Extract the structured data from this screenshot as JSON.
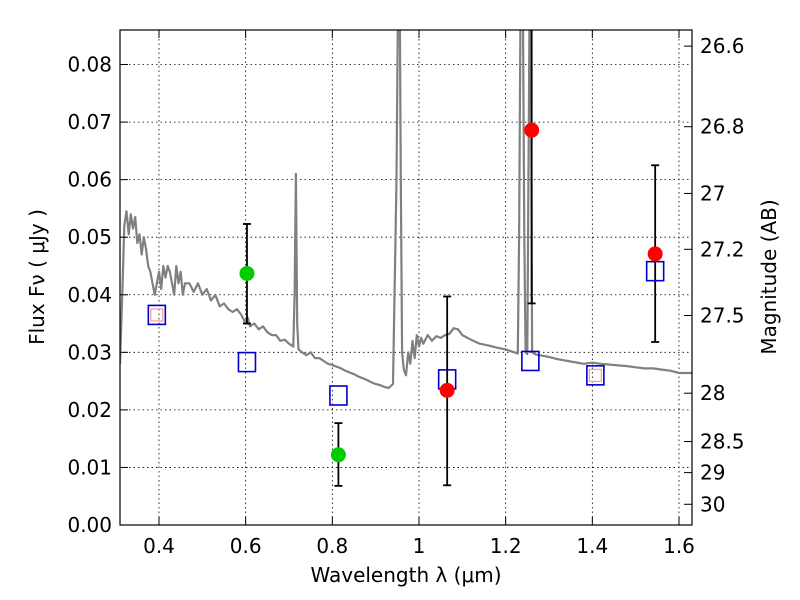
{
  "chart_data": {
    "type": "scatter",
    "xlabel": "Wavelength  λ (μm)",
    "ylabel": "Flux  Fν  ( μJy )",
    "ylabel_right": "Magnitude (AB)",
    "xlim": [
      0.31,
      1.63
    ],
    "ylim": [
      0.0,
      0.086
    ],
    "grid": true,
    "x_ticks": [
      0.4,
      0.6,
      0.8,
      1.0,
      1.2,
      1.4,
      1.6
    ],
    "x_tick_labels": [
      "0.4",
      "0.6",
      "0.8",
      "1",
      "1.2",
      "1.4",
      "1.6"
    ],
    "y_ticks": [
      0.0,
      0.01,
      0.02,
      0.03,
      0.04,
      0.05,
      0.06,
      0.07,
      0.08
    ],
    "y_tick_labels": [
      "0.00",
      "0.01",
      "0.02",
      "0.03",
      "0.04",
      "0.05",
      "0.06",
      "0.07",
      "0.08"
    ],
    "right_ticks": [
      {
        "label": "26.6",
        "flux": 0.0832
      },
      {
        "label": "26.8",
        "flux": 0.0692
      },
      {
        "label": "27",
        "flux": 0.0576
      },
      {
        "label": "27.2",
        "flux": 0.0479
      },
      {
        "label": "27.5",
        "flux": 0.0364
      },
      {
        "label": "28",
        "flux": 0.0229
      },
      {
        "label": "28.5",
        "flux": 0.0145
      },
      {
        "label": "29",
        "flux": 0.0091
      },
      {
        "label": "30",
        "flux": 0.0036
      }
    ],
    "colors": {
      "model_line": "#808080",
      "green_points": "#00cc00",
      "red_points": "#ff0000",
      "model_boxes": "#0000cc",
      "errorbar": "#000000",
      "grid": "#808080"
    },
    "model_spectrum": [
      [
        0.31,
        0.028
      ],
      [
        0.316,
        0.042
      ],
      [
        0.32,
        0.052
      ],
      [
        0.325,
        0.0545
      ],
      [
        0.33,
        0.0505
      ],
      [
        0.335,
        0.054
      ],
      [
        0.34,
        0.0515
      ],
      [
        0.345,
        0.0535
      ],
      [
        0.35,
        0.049
      ],
      [
        0.355,
        0.0505
      ],
      [
        0.36,
        0.047
      ],
      [
        0.365,
        0.05
      ],
      [
        0.37,
        0.048
      ],
      [
        0.375,
        0.045
      ],
      [
        0.38,
        0.044
      ],
      [
        0.385,
        0.042
      ],
      [
        0.39,
        0.04
      ],
      [
        0.4,
        0.044
      ],
      [
        0.405,
        0.041
      ],
      [
        0.41,
        0.045
      ],
      [
        0.415,
        0.043
      ],
      [
        0.42,
        0.045
      ],
      [
        0.425,
        0.044
      ],
      [
        0.43,
        0.042
      ],
      [
        0.435,
        0.04
      ],
      [
        0.44,
        0.045
      ],
      [
        0.445,
        0.042
      ],
      [
        0.45,
        0.044
      ],
      [
        0.455,
        0.04
      ],
      [
        0.46,
        0.042
      ],
      [
        0.47,
        0.042
      ],
      [
        0.48,
        0.0405
      ],
      [
        0.49,
        0.042
      ],
      [
        0.5,
        0.04
      ],
      [
        0.51,
        0.041
      ],
      [
        0.52,
        0.039
      ],
      [
        0.53,
        0.04
      ],
      [
        0.54,
        0.038
      ],
      [
        0.55,
        0.0385
      ],
      [
        0.56,
        0.0375
      ],
      [
        0.57,
        0.037
      ],
      [
        0.58,
        0.0375
      ],
      [
        0.59,
        0.0365
      ],
      [
        0.6,
        0.035
      ],
      [
        0.605,
        0.036
      ],
      [
        0.61,
        0.0345
      ],
      [
        0.62,
        0.035
      ],
      [
        0.63,
        0.034
      ],
      [
        0.64,
        0.0345
      ],
      [
        0.65,
        0.0335
      ],
      [
        0.66,
        0.033
      ],
      [
        0.67,
        0.033
      ],
      [
        0.68,
        0.032
      ],
      [
        0.69,
        0.0322
      ],
      [
        0.7,
        0.0315
      ],
      [
        0.71,
        0.031
      ],
      [
        0.713,
        0.04
      ],
      [
        0.716,
        0.061
      ],
      [
        0.719,
        0.035
      ],
      [
        0.722,
        0.0305
      ],
      [
        0.73,
        0.03
      ],
      [
        0.74,
        0.0295
      ],
      [
        0.75,
        0.03
      ],
      [
        0.76,
        0.029
      ],
      [
        0.77,
        0.029
      ],
      [
        0.78,
        0.0285
      ],
      [
        0.79,
        0.028
      ],
      [
        0.8,
        0.0278
      ],
      [
        0.81,
        0.0275
      ],
      [
        0.82,
        0.0272
      ],
      [
        0.83,
        0.0268
      ],
      [
        0.84,
        0.0265
      ],
      [
        0.85,
        0.0262
      ],
      [
        0.86,
        0.0258
      ],
      [
        0.87,
        0.0255
      ],
      [
        0.88,
        0.0252
      ],
      [
        0.89,
        0.0248
      ],
      [
        0.9,
        0.0245
      ],
      [
        0.91,
        0.0243
      ],
      [
        0.92,
        0.024
      ],
      [
        0.93,
        0.0238
      ],
      [
        0.94,
        0.0245
      ],
      [
        0.948,
        0.06
      ],
      [
        0.951,
        0.087
      ],
      [
        0.953,
        0.087
      ],
      [
        0.956,
        0.087
      ],
      [
        0.958,
        0.06
      ],
      [
        0.961,
        0.03
      ],
      [
        0.965,
        0.027
      ],
      [
        0.97,
        0.026
      ],
      [
        0.975,
        0.03
      ],
      [
        0.98,
        0.028
      ],
      [
        0.985,
        0.032
      ],
      [
        0.99,
        0.029
      ],
      [
        0.995,
        0.033
      ],
      [
        1.0,
        0.031
      ],
      [
        1.005,
        0.0325
      ],
      [
        1.01,
        0.0315
      ],
      [
        1.02,
        0.033
      ],
      [
        1.03,
        0.032
      ],
      [
        1.04,
        0.0328
      ],
      [
        1.05,
        0.0325
      ],
      [
        1.06,
        0.033
      ],
      [
        1.07,
        0.0332
      ],
      [
        1.08,
        0.0342
      ],
      [
        1.09,
        0.034
      ],
      [
        1.1,
        0.033
      ],
      [
        1.12,
        0.0322
      ],
      [
        1.14,
        0.0315
      ],
      [
        1.16,
        0.0312
      ],
      [
        1.18,
        0.0308
      ],
      [
        1.2,
        0.0305
      ],
      [
        1.22,
        0.03
      ],
      [
        1.228,
        0.0298
      ],
      [
        1.231,
        0.05
      ],
      [
        1.234,
        0.087
      ],
      [
        1.24,
        0.087
      ],
      [
        1.243,
        0.05
      ],
      [
        1.246,
        0.03
      ],
      [
        1.25,
        0.0297
      ],
      [
        1.255,
        0.088
      ],
      [
        1.258,
        0.088
      ],
      [
        1.261,
        0.03
      ],
      [
        1.27,
        0.0296
      ],
      [
        1.3,
        0.0292
      ],
      [
        1.32,
        0.0288
      ],
      [
        1.35,
        0.0284
      ],
      [
        1.38,
        0.028
      ],
      [
        1.4,
        0.0282
      ],
      [
        1.42,
        0.028
      ],
      [
        1.45,
        0.0278
      ],
      [
        1.48,
        0.0276
      ],
      [
        1.5,
        0.0274
      ],
      [
        1.52,
        0.0272
      ],
      [
        1.54,
        0.0272
      ],
      [
        1.56,
        0.027
      ],
      [
        1.58,
        0.0268
      ],
      [
        1.6,
        0.0264
      ],
      [
        1.63,
        0.0264
      ]
    ],
    "observed_points": [
      {
        "x": 0.603,
        "y": 0.0437,
        "yerr_low": 0.035,
        "yerr_high": 0.0523,
        "color": "green"
      },
      {
        "x": 0.814,
        "y": 0.0122,
        "yerr_low": 0.0068,
        "yerr_high": 0.0177,
        "color": "green"
      },
      {
        "x": 1.065,
        "y": 0.0234,
        "yerr_low": 0.0069,
        "yerr_high": 0.0397,
        "color": "red"
      },
      {
        "x": 1.26,
        "y": 0.0686,
        "yerr_low": 0.0385,
        "yerr_high": 0.087,
        "color": "red"
      },
      {
        "x": 1.545,
        "y": 0.0471,
        "yerr_low": 0.0318,
        "yerr_high": 0.0625,
        "color": "red"
      }
    ],
    "model_photometry": [
      {
        "x": 0.395,
        "y": 0.0365,
        "inner": "#ff9999"
      },
      {
        "x": 0.603,
        "y": 0.0283
      },
      {
        "x": 0.814,
        "y": 0.0225
      },
      {
        "x": 1.065,
        "y": 0.0253
      },
      {
        "x": 1.257,
        "y": 0.0285
      },
      {
        "x": 1.407,
        "y": 0.026,
        "inner": "#ff9999"
      },
      {
        "x": 1.545,
        "y": 0.0441
      }
    ]
  }
}
